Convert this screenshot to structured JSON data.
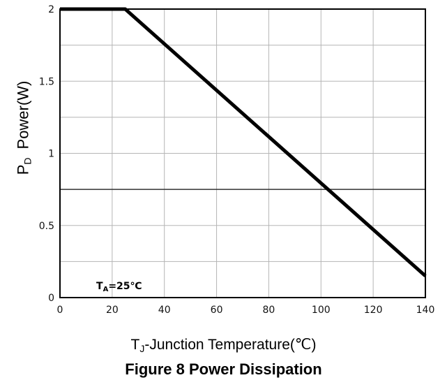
{
  "chart_data": {
    "type": "line",
    "title": "Figure 8 Power Dissipation",
    "xlabel": {
      "main": "T",
      "sub": "J",
      "rest": "-Junction Temperature(℃)"
    },
    "ylabel": {
      "main": "P",
      "sub": "D",
      "rest": "Power(W)"
    },
    "xlim": [
      0,
      140
    ],
    "ylim": [
      0,
      2
    ],
    "x_ticks": [
      "0",
      "20",
      "40",
      "60",
      "80",
      "100",
      "120",
      "140"
    ],
    "y_ticks": [
      "0",
      "0.5",
      "1",
      "1.5",
      "2"
    ],
    "grid": true,
    "series": [
      {
        "x": [
          0,
          25,
          140
        ],
        "y": [
          2,
          2,
          0.15
        ]
      }
    ],
    "annotation": {
      "main": "T",
      "sub": "A",
      "rest": "=25℃"
    },
    "colors": {
      "line": "#000000",
      "grid": "#b5b5b5",
      "frame": "#000000"
    }
  }
}
